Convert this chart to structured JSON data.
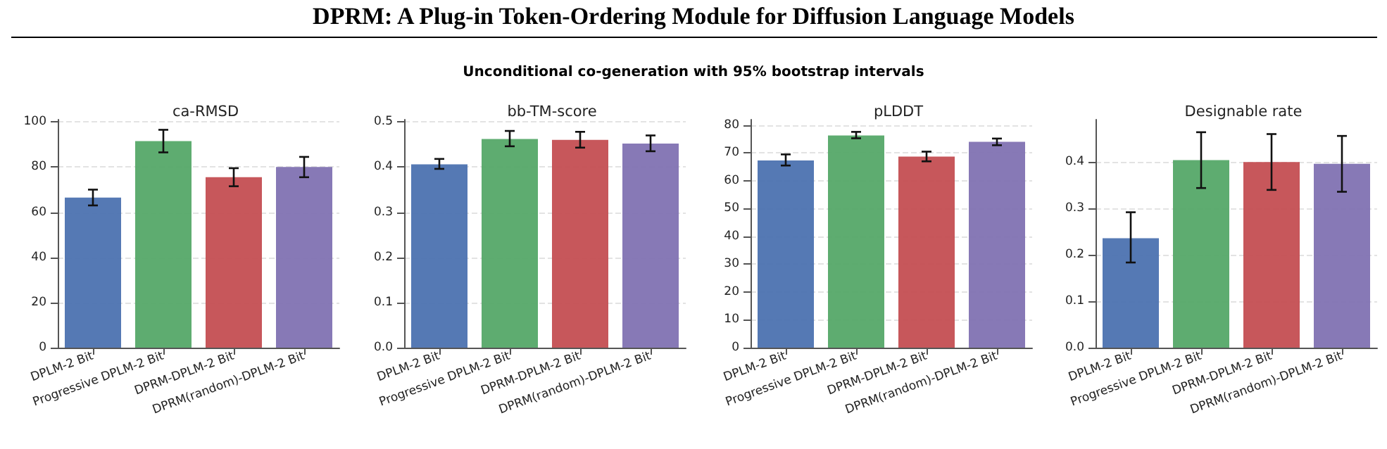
{
  "chart_data": [
    {
      "type": "bar",
      "title": "ca-RMSD",
      "annotations": [
        "DPRM: A Plug-in Token-Ordering Module for Diffusion Language Models",
        "Unconditional co-generation with 95% bootstrap intervals"
      ],
      "categories": [
        "DPLM-2 Bit",
        "Progressive DPLM-2 Bit",
        "DPRM-DPLM-2 Bit",
        "DPRM(random)-DPLM-2 Bit"
      ],
      "values": [
        66.5,
        91.5,
        75.5,
        80
      ],
      "colors": [
        "#4c72b0",
        "#55a868",
        "#c44e52",
        "#8172b2"
      ],
      "errors": [
        [
          63,
          70
        ],
        [
          86.5,
          96.5
        ],
        [
          71.5,
          79.5
        ],
        [
          75.5,
          84.5
        ]
      ],
      "ylim": [
        0,
        101
      ],
      "yticks": [
        0,
        20,
        40,
        60,
        80,
        100
      ],
      "grid": "y"
    },
    {
      "type": "bar",
      "title": "bb-TM-score",
      "categories": [
        "DPLM-2 Bit",
        "Progressive DPLM-2 Bit",
        "DPRM-DPLM-2 Bit",
        "DPRM(random)-DPLM-2 Bit"
      ],
      "values": [
        0.406,
        0.462,
        0.46,
        0.452
      ],
      "colors": [
        "#4c72b0",
        "#55a868",
        "#c44e52",
        "#8172b2"
      ],
      "errors": [
        [
          0.396,
          0.418
        ],
        [
          0.446,
          0.48
        ],
        [
          0.443,
          0.478
        ],
        [
          0.435,
          0.47
        ]
      ],
      "ylim": [
        0,
        0.505
      ],
      "yticks": [
        {
          "value": 0,
          "label": "0.0"
        },
        0.1,
        0.2,
        0.3,
        0.4,
        0.5
      ],
      "grid": "y"
    },
    {
      "type": "bar",
      "title": "pLDDT",
      "categories": [
        "DPLM-2 Bit",
        "Progressive DPLM-2 Bit",
        "DPRM-DPLM-2 Bit",
        "DPRM(random)-DPLM-2 Bit"
      ],
      "values": [
        67.3,
        76.3,
        68.7,
        74
      ],
      "colors": [
        "#4c72b0",
        "#55a868",
        "#c44e52",
        "#8172b2"
      ],
      "errors": [
        [
          65.5,
          69.5
        ],
        [
          75.3,
          77.6
        ],
        [
          67,
          70.5
        ],
        [
          72.8,
          75.2
        ]
      ],
      "ylim": [
        0,
        82
      ],
      "yticks": [
        0,
        10,
        20,
        30,
        40,
        50,
        60,
        70,
        80
      ],
      "grid": "y"
    },
    {
      "type": "bar",
      "title": "Designable rate",
      "categories": [
        "DPLM-2 Bit",
        "Progressive DPLM-2 Bit",
        "DPRM-DPLM-2 Bit",
        "DPRM(random)-DPLM-2 Bit"
      ],
      "values": [
        0.235,
        0.403,
        0.399,
        0.395
      ],
      "colors": [
        "#4c72b0",
        "#55a868",
        "#c44e52",
        "#8172b2"
      ],
      "errors": [
        [
          0.183,
          0.291
        ],
        [
          0.343,
          0.463
        ],
        [
          0.339,
          0.459
        ],
        [
          0.335,
          0.455
        ]
      ],
      "ylim": [
        0,
        0.49
      ],
      "yticks": [
        {
          "value": 0,
          "label": "0.0"
        },
        0.1,
        0.2,
        0.3,
        0.4
      ],
      "grid": "y"
    }
  ]
}
